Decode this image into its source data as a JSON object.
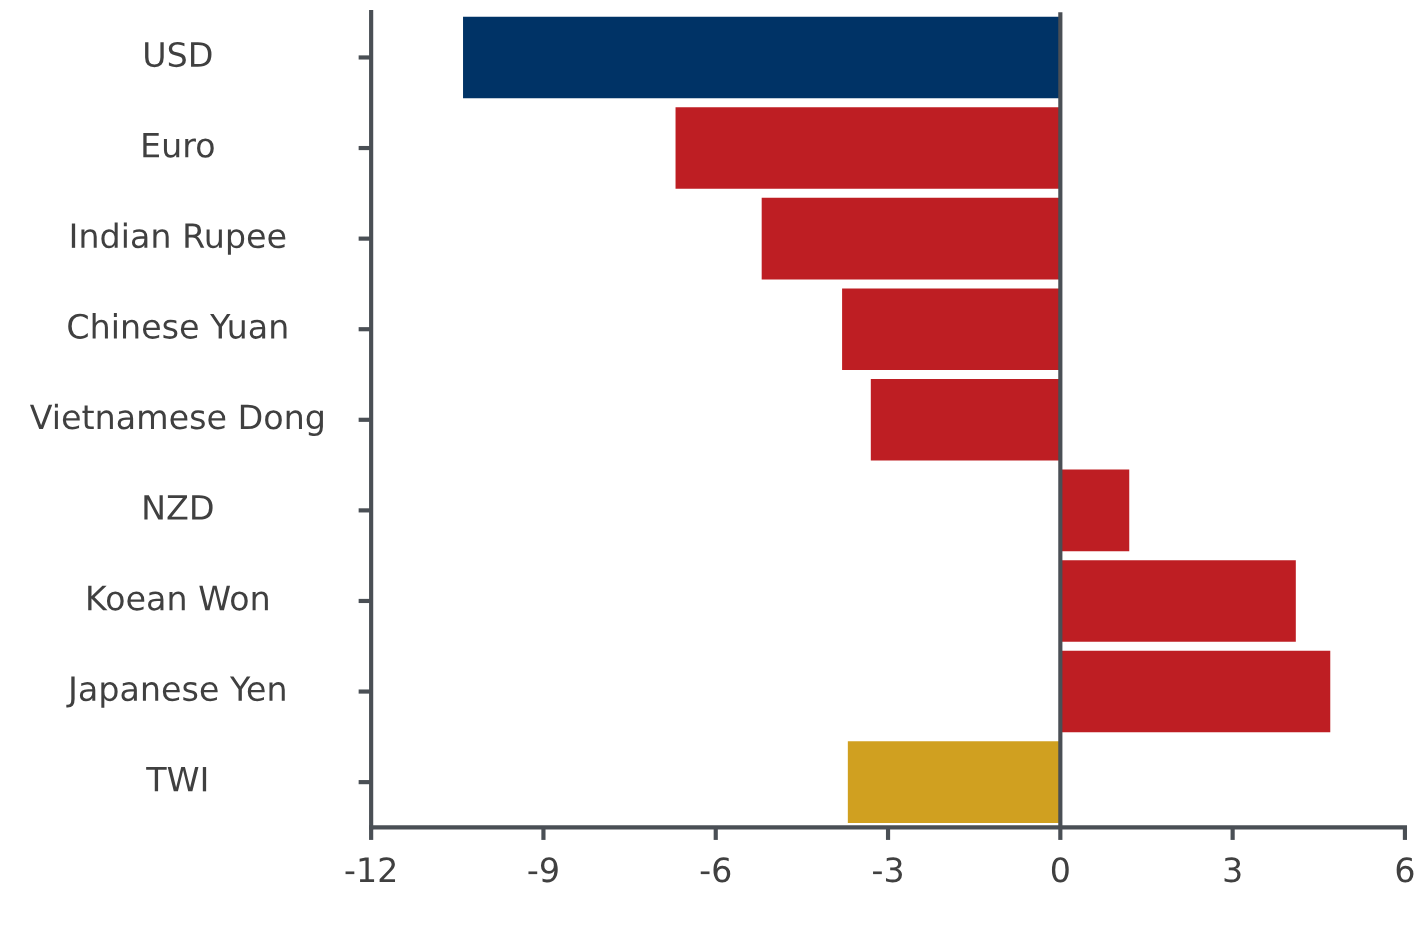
{
  "chart_data": {
    "type": "bar",
    "orientation": "horizontal",
    "categories": [
      "USD",
      "Euro",
      "Indian Rupee",
      "Chinese Yuan",
      "Vietnamese Dong",
      "NZD",
      "Koean Won",
      "Japanese Yen",
      "TWI"
    ],
    "values": [
      -10.4,
      -6.7,
      -5.2,
      -3.8,
      -3.3,
      1.2,
      4.1,
      4.7,
      -3.7
    ],
    "colors": [
      "#003366",
      "#be1e23",
      "#be1e23",
      "#be1e23",
      "#be1e23",
      "#be1e23",
      "#be1e23",
      "#be1e23",
      "#d0a020"
    ],
    "xlim": [
      -12,
      6
    ],
    "xticks": [
      -12,
      -9,
      -6,
      -3,
      0,
      3,
      6
    ],
    "ref_lines": [
      {
        "axis": "x",
        "value": 0,
        "color": "#4a4f55"
      }
    ],
    "grid": false
  }
}
